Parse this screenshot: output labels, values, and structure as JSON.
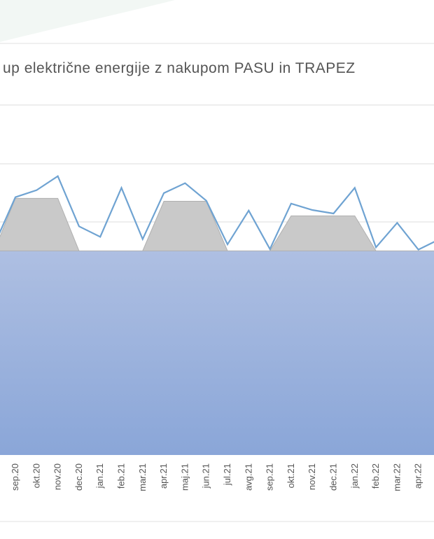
{
  "chart_data": {
    "type": "area",
    "title": "up električne energije z nakupom  PASU in TRAPEZ",
    "categories": [
      null,
      "sep.20",
      "okt.20",
      "nov.20",
      "dec.20",
      "jan.21",
      "feb.21",
      "mar.21",
      "apr.21",
      "maj.21",
      "jun.21",
      "jul.21",
      "avg.21",
      "sep.21",
      "okt.21",
      "nov.21",
      "dec.21",
      "jan.22",
      "feb.22",
      "mar.22",
      "apr.22",
      null
    ],
    "ylim": [
      0,
      6
    ],
    "series": [
      {
        "color": "#93acdb",
        "stacked": true,
        "values": [
          3.5,
          3.5,
          3.5,
          3.5,
          3.5,
          3.5,
          3.5,
          3.5,
          3.5,
          3.5,
          3.5,
          3.5,
          3.5,
          3.5,
          3.5,
          3.5,
          3.5,
          3.5,
          3.5,
          3.5,
          3.5,
          3.5
        ]
      },
      {
        "color": "#c9c9c9",
        "stacked": true,
        "values": [
          0,
          0.9,
          0.9,
          0.9,
          0,
          0,
          0,
          0,
          0.85,
          0.85,
          0.85,
          0,
          0,
          0,
          0.6,
          0.6,
          0.6,
          0.6,
          0,
          0,
          0,
          0
        ]
      },
      {
        "color": "#6fa3d2",
        "stacked": false,
        "values": [
          3.6,
          4.42,
          4.54,
          4.78,
          3.92,
          3.74,
          4.58,
          3.7,
          4.49,
          4.66,
          4.36,
          3.61,
          4.19,
          3.53,
          4.31,
          4.2,
          4.14,
          4.58,
          3.56,
          3.98,
          3.52,
          3.7
        ]
      }
    ]
  }
}
